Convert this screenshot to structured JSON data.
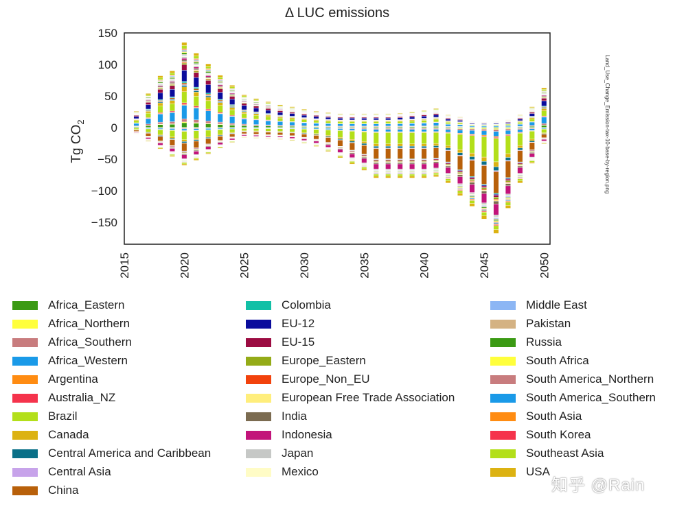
{
  "chart_data": {
    "type": "bar",
    "stacked": true,
    "title": "Δ LUC emissions",
    "ylabel": "Tg CO2",
    "ylabel_main": "Tg CO",
    "ylabel_sub": "2",
    "xlabel": "",
    "ylim": [
      -185,
      150
    ],
    "yticks": [
      150,
      100,
      50,
      0,
      -50,
      -100,
      -150
    ],
    "ytick_labels": [
      "150",
      "100",
      "50",
      "0",
      "−50",
      "−100",
      "−150"
    ],
    "xticks": [
      2015,
      2020,
      2025,
      2030,
      2035,
      2040,
      2045,
      2050
    ],
    "xtick_labels": [
      "2015",
      "2020",
      "2025",
      "2030",
      "2035",
      "2040",
      "2045",
      "2050"
    ],
    "years": [
      2016,
      2017,
      2018,
      2019,
      2020,
      2021,
      2022,
      2023,
      2024,
      2025,
      2026,
      2027,
      2028,
      2029,
      2030,
      2031,
      2032,
      2033,
      2034,
      2035,
      2036,
      2037,
      2038,
      2039,
      2040,
      2041,
      2042,
      2043,
      2044,
      2045,
      2046,
      2047,
      2048,
      2049,
      2050
    ],
    "totals_positive": [
      26,
      54,
      82,
      90,
      135,
      118,
      101,
      83,
      67,
      52,
      46,
      41,
      36,
      33,
      29,
      26,
      24,
      22,
      22,
      22,
      22,
      22,
      23,
      25,
      27,
      30,
      20,
      17,
      10,
      9,
      10,
      12,
      20,
      33,
      63
    ],
    "totals_negative": [
      -10,
      -22,
      -34,
      -46,
      -60,
      -52,
      -42,
      -33,
      -24,
      -16,
      -17,
      -18,
      -19,
      -21,
      -25,
      -30,
      -38,
      -48,
      -58,
      -68,
      -80,
      -80,
      -80,
      -80,
      -80,
      -78,
      -88,
      -108,
      -125,
      -145,
      -168,
      -128,
      -88,
      -57,
      -26
    ],
    "side_label": "Land_Use_Change_Emission-tax-10-base-by-region.png",
    "series": [
      {
        "name": "Africa_Eastern",
        "color": "#3b9a14",
        "pos_share": 0.06,
        "neg_share": 0.01
      },
      {
        "name": "Africa_Northern",
        "color": "#ffff3c",
        "pos_share": 0.01,
        "neg_share": 0.01
      },
      {
        "name": "Africa_Southern",
        "color": "#c87c7e",
        "pos_share": 0.04,
        "neg_share": 0.02
      },
      {
        "name": "Africa_Western",
        "color": "#1a9ae8",
        "pos_share": 0.17,
        "neg_share": 0.05
      },
      {
        "name": "Argentina",
        "color": "#ff8c12",
        "pos_share": 0.01,
        "neg_share": 0.01
      },
      {
        "name": "Australia_NZ",
        "color": "#f5334c",
        "pos_share": 0.02,
        "neg_share": 0.01
      },
      {
        "name": "Brazil",
        "color": "#b3df1a",
        "pos_share": 0.14,
        "neg_share": 0.24
      },
      {
        "name": "Canada",
        "color": "#dcb212",
        "pos_share": 0.06,
        "neg_share": 0.05
      },
      {
        "name": "Central America and Caribbean",
        "color": "#0a7088",
        "pos_share": 0.02,
        "neg_share": 0.04
      },
      {
        "name": "Central Asia",
        "color": "#c7a3ea",
        "pos_share": 0.01,
        "neg_share": 0.01
      },
      {
        "name": "China",
        "color": "#b8600a",
        "pos_share": 0.02,
        "neg_share": 0.22
      },
      {
        "name": "Colombia",
        "color": "#12c0a6",
        "pos_share": 0.02,
        "neg_share": 0.01
      },
      {
        "name": "EU-12",
        "color": "#0a0c9c",
        "pos_share": 0.14,
        "neg_share": 0.01
      },
      {
        "name": "EU-15",
        "color": "#9c0c42",
        "pos_share": 0.07,
        "neg_share": 0.02
      },
      {
        "name": "Europe_Eastern",
        "color": "#94ab18",
        "pos_share": 0.02,
        "neg_share": 0.02
      },
      {
        "name": "Europe_Non_EU",
        "color": "#f2420c",
        "pos_share": 0.01,
        "neg_share": 0.01
      },
      {
        "name": "European Free Trade Association",
        "color": "#ffee7c",
        "pos_share": 0.01,
        "neg_share": 0.01
      },
      {
        "name": "India",
        "color": "#7b6b50",
        "pos_share": 0.02,
        "neg_share": 0.03
      },
      {
        "name": "Indonesia",
        "color": "#c2147a",
        "pos_share": 0.02,
        "neg_share": 0.11
      },
      {
        "name": "Japan",
        "color": "#c6c8c6",
        "pos_share": 0.02,
        "neg_share": 0.02
      },
      {
        "name": "Mexico",
        "color": "#fffcc6",
        "pos_share": 0.01,
        "neg_share": 0.01
      },
      {
        "name": "Middle East",
        "color": "#8cb6f4",
        "pos_share": 0.01,
        "neg_share": 0.01
      },
      {
        "name": "Pakistan",
        "color": "#d4b283",
        "pos_share": 0.01,
        "neg_share": 0.01
      },
      {
        "name": "Russia",
        "color": "#3b9a14",
        "pos_share": 0.02,
        "neg_share": 0.01
      },
      {
        "name": "South Africa",
        "color": "#ffff3c",
        "pos_share": 0.01,
        "neg_share": 0.01
      },
      {
        "name": "South America_Northern",
        "color": "#c87c7e",
        "pos_share": 0.01,
        "neg_share": 0.01
      },
      {
        "name": "South America_Southern",
        "color": "#1a9ae8",
        "pos_share": 0.01,
        "neg_share": 0.01
      },
      {
        "name": "South Asia",
        "color": "#ff8c12",
        "pos_share": 0.01,
        "neg_share": 0.01
      },
      {
        "name": "South Korea",
        "color": "#f5334c",
        "pos_share": 0.01,
        "neg_share": 0.01
      },
      {
        "name": "Southeast Asia",
        "color": "#b3df1a",
        "pos_share": 0.04,
        "neg_share": 0.04
      },
      {
        "name": "USA",
        "color": "#dcb212",
        "pos_share": 0.04,
        "neg_share": 0.04
      }
    ]
  },
  "watermark": "知乎 @Rain"
}
